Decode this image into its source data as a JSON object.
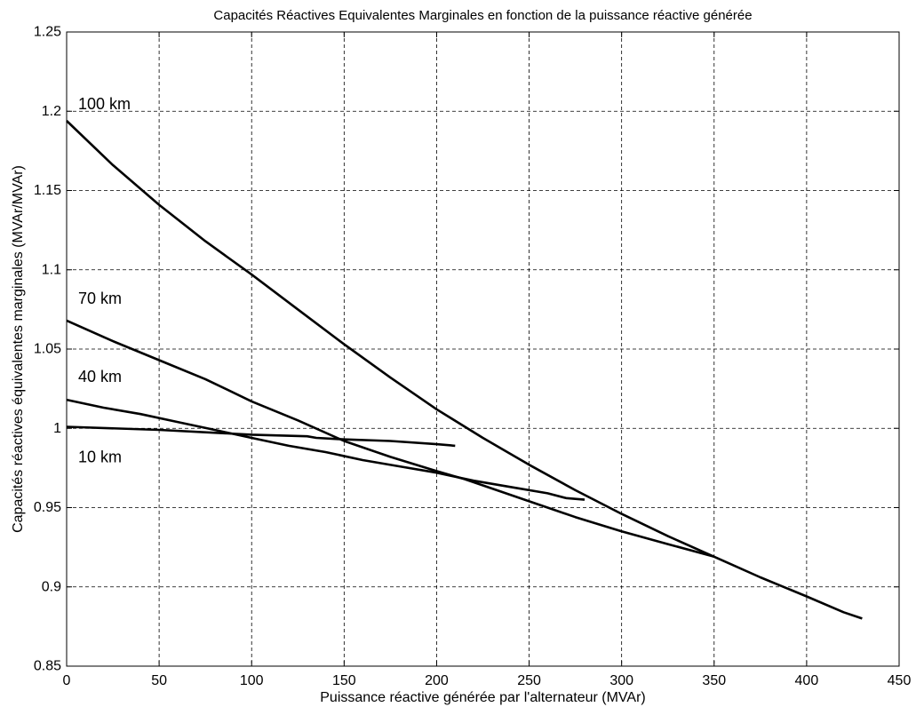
{
  "chart_data": {
    "type": "line",
    "title": "Capacités Réactives Equivalentes Marginales en fonction de la puissance réactive générée",
    "xlabel": "Puissance réactive générée par l'alternateur (MVAr)",
    "ylabel": "Capacités réactives équivalentes marginales (MVAr/MVAr)",
    "xlim": [
      0,
      450
    ],
    "ylim": [
      0.85,
      1.25
    ],
    "xticks": [
      0,
      50,
      100,
      150,
      200,
      250,
      300,
      350,
      400,
      450
    ],
    "xticklabels": [
      "0",
      "50",
      "100",
      "150",
      "200",
      "250",
      "300",
      "350",
      "400",
      "450"
    ],
    "yticks": [
      0.85,
      0.9,
      0.95,
      1,
      1.05,
      1.1,
      1.15,
      1.2,
      1.25
    ],
    "yticklabels": [
      "0.85",
      "0.9",
      "0.95",
      "1",
      "1.05",
      "1.1",
      "1.15",
      "1.2",
      "1.25"
    ],
    "grid": true,
    "legend": false,
    "line_color": "#000000",
    "series": [
      {
        "name": "100 km",
        "x": [
          0,
          25,
          50,
          75,
          100,
          125,
          150,
          175,
          200,
          225,
          250,
          275,
          300,
          325,
          350,
          375,
          400,
          420,
          430
        ],
        "y": [
          1.194,
          1.166,
          1.141,
          1.118,
          1.097,
          1.075,
          1.053,
          1.032,
          1.012,
          0.994,
          0.977,
          0.961,
          0.946,
          0.932,
          0.919,
          0.906,
          0.894,
          0.884,
          0.88
        ]
      },
      {
        "name": "70 km",
        "x": [
          0,
          25,
          50,
          75,
          100,
          125,
          150,
          175,
          200,
          215,
          225,
          250,
          275,
          300,
          325,
          350
        ],
        "y": [
          1.068,
          1.055,
          1.043,
          1.031,
          1.017,
          1.005,
          0.992,
          0.982,
          0.973,
          0.968,
          0.964,
          0.954,
          0.944,
          0.935,
          0.927,
          0.919
        ]
      },
      {
        "name": "40 km",
        "x": [
          0,
          20,
          40,
          60,
          80,
          100,
          120,
          140,
          160,
          180,
          200,
          220,
          240,
          260,
          270,
          280
        ],
        "y": [
          1.018,
          1.013,
          1.009,
          1.004,
          0.999,
          0.994,
          0.989,
          0.985,
          0.98,
          0.976,
          0.972,
          0.967,
          0.963,
          0.959,
          0.956,
          0.955
        ]
      },
      {
        "name": "10 km",
        "x": [
          0,
          50,
          100,
          130,
          135,
          150,
          175,
          200,
          210
        ],
        "y": [
          1.001,
          0.999,
          0.996,
          0.995,
          0.994,
          0.993,
          0.992,
          0.99,
          0.989
        ]
      }
    ]
  }
}
